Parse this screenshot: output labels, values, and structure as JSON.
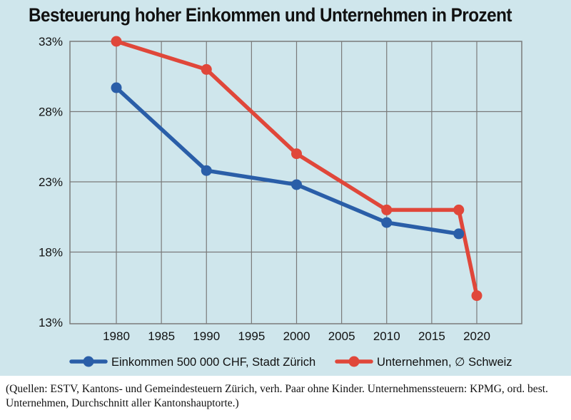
{
  "chart_data": {
    "type": "line",
    "title": "Besteuerung hoher Einkommen und Unternehmen in Prozent",
    "x_ticks": [
      1980,
      1985,
      1990,
      1995,
      2000,
      2005,
      2010,
      2015,
      2020
    ],
    "x_tick_labels": [
      "1980",
      "1985",
      "1990",
      "1995",
      "2000",
      "2005",
      "2010",
      "2015",
      "2020"
    ],
    "xlim": [
      1975,
      2022
    ],
    "y_ticks": [
      13,
      18,
      23,
      28,
      33
    ],
    "y_tick_labels": [
      "13%",
      "18%",
      "23%",
      "28%",
      "33%"
    ],
    "ylim": [
      13,
      33
    ],
    "grid": true,
    "legend_position": "bottom",
    "series": [
      {
        "name": "Einkommen 500 000 CHF, Stadt Zürich",
        "color": "#2a5ea8",
        "points": [
          {
            "x": 1980,
            "y": 29.7
          },
          {
            "x": 1990,
            "y": 23.8
          },
          {
            "x": 2000,
            "y": 22.8
          },
          {
            "x": 2010,
            "y": 20.1
          },
          {
            "x": 2018,
            "y": 19.3
          }
        ]
      },
      {
        "name": "Unternehmen, ∅ Schweiz",
        "color": "#e0473a",
        "points": [
          {
            "x": 1980,
            "y": 33.0
          },
          {
            "x": 1990,
            "y": 31.0
          },
          {
            "x": 2000,
            "y": 25.0
          },
          {
            "x": 2010,
            "y": 21.0
          },
          {
            "x": 2018,
            "y": 21.0
          },
          {
            "x": 2020,
            "y": 14.9
          }
        ]
      }
    ]
  },
  "source_note": "(Quellen: ESTV, Kantons- und Gemeindesteuern Zürich, verh. Paar ohne Kinder. Unternehmenssteuern: KPMG, ord. best. Unternehmen, Durchschnitt aller Kantonshauptorte.)"
}
